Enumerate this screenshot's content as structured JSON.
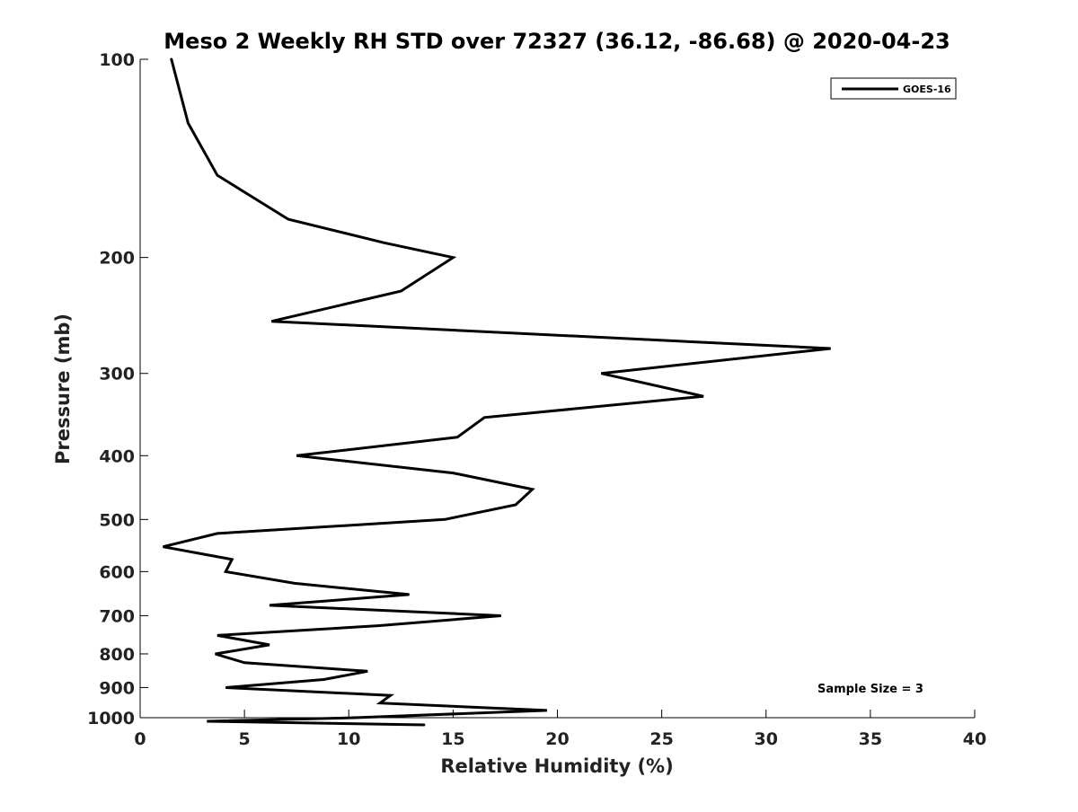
{
  "chart_data": {
    "type": "line",
    "title": "Meso 2 Weekly RH STD over 72327 (36.12, -86.68) @ 2020-04-23",
    "xlabel": "Relative Humidity (%)",
    "ylabel": "Pressure (mb)",
    "xlim": [
      0,
      40
    ],
    "ylim": [
      100,
      1000
    ],
    "y_scale": "log",
    "y_direction": "descending",
    "xticks": [
      0,
      5,
      10,
      15,
      20,
      25,
      30,
      35,
      40
    ],
    "xtick_labels": [
      "0",
      "5",
      "10",
      "15",
      "20",
      "25",
      "30",
      "35",
      "40"
    ],
    "yticks": [
      100,
      200,
      300,
      400,
      500,
      600,
      700,
      800,
      900,
      1000
    ],
    "ytick_labels": [
      "100",
      "200",
      "300",
      "400",
      "500",
      "600",
      "700",
      "800",
      "900",
      "1000"
    ],
    "grid": false,
    "legend_position": "top-right",
    "series": [
      {
        "name": "GOES-16",
        "color": "#000000",
        "points": [
          {
            "x": 1.5,
            "y": 100
          },
          {
            "x": 2.3,
            "y": 125
          },
          {
            "x": 3.7,
            "y": 150
          },
          {
            "x": 7.1,
            "y": 175
          },
          {
            "x": 11.7,
            "y": 190
          },
          {
            "x": 15.0,
            "y": 200
          },
          {
            "x": 12.5,
            "y": 225
          },
          {
            "x": 6.3,
            "y": 250
          },
          {
            "x": 33.1,
            "y": 275
          },
          {
            "x": 22.1,
            "y": 300
          },
          {
            "x": 27.0,
            "y": 325
          },
          {
            "x": 16.5,
            "y": 350
          },
          {
            "x": 15.2,
            "y": 375
          },
          {
            "x": 7.5,
            "y": 400
          },
          {
            "x": 15.0,
            "y": 425
          },
          {
            "x": 18.8,
            "y": 450
          },
          {
            "x": 18.0,
            "y": 475
          },
          {
            "x": 14.6,
            "y": 500
          },
          {
            "x": 3.7,
            "y": 525
          },
          {
            "x": 1.1,
            "y": 550
          },
          {
            "x": 4.4,
            "y": 575
          },
          {
            "x": 4.1,
            "y": 600
          },
          {
            "x": 7.4,
            "y": 625
          },
          {
            "x": 12.9,
            "y": 650
          },
          {
            "x": 6.2,
            "y": 675
          },
          {
            "x": 17.3,
            "y": 700
          },
          {
            "x": 11.4,
            "y": 725
          },
          {
            "x": 3.7,
            "y": 750
          },
          {
            "x": 6.2,
            "y": 775
          },
          {
            "x": 3.6,
            "y": 800
          },
          {
            "x": 5.0,
            "y": 825
          },
          {
            "x": 10.9,
            "y": 850
          },
          {
            "x": 8.8,
            "y": 875
          },
          {
            "x": 4.1,
            "y": 900
          },
          {
            "x": 12.0,
            "y": 925
          },
          {
            "x": 11.5,
            "y": 950
          },
          {
            "x": 19.5,
            "y": 975
          },
          {
            "x": 10.3,
            "y": 1000
          },
          {
            "x": 3.2,
            "y": 1025
          },
          {
            "x": 13.6,
            "y": 1050
          }
        ]
      }
    ],
    "legend": [
      {
        "label": "GOES-16",
        "color": "#000000"
      }
    ],
    "annotations": [
      {
        "text": "Sample Size = 3",
        "position": "bottom-right"
      }
    ]
  }
}
